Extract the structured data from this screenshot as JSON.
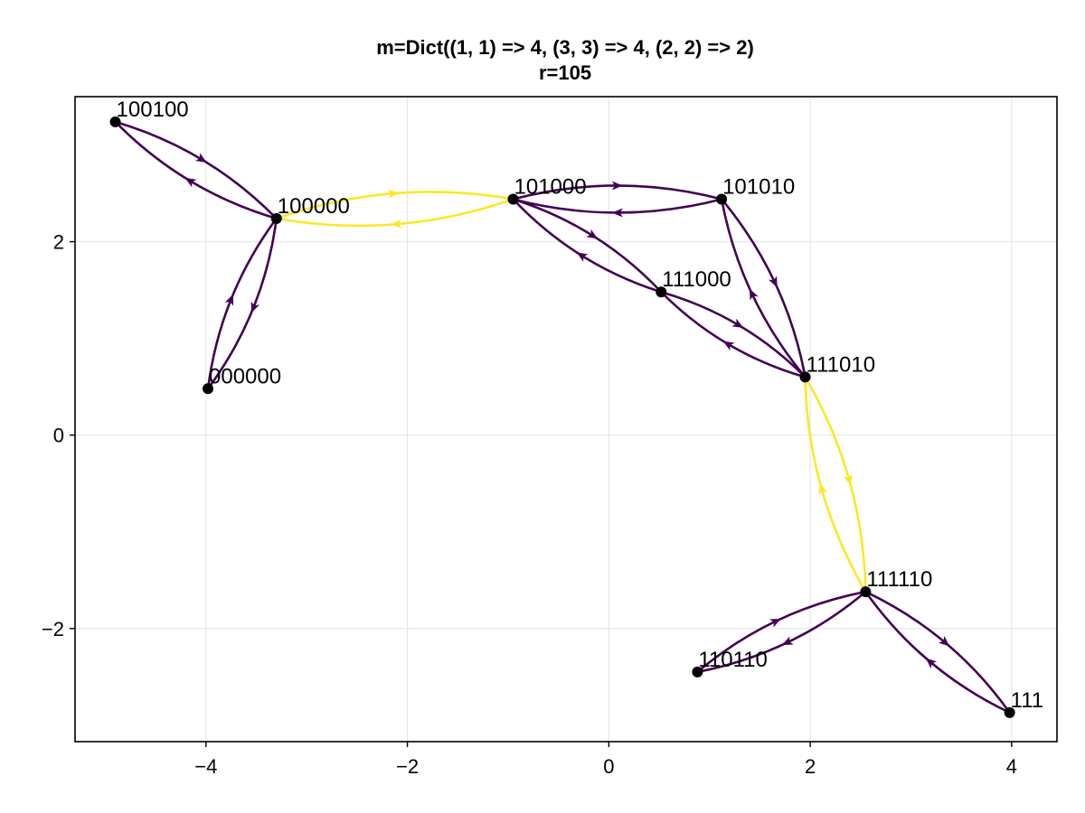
{
  "title_line1": "m=Dict((1, 1) => 4, (3, 3) => 4, (2, 2) => 2)",
  "title_line2": "r=105",
  "chart_data": {
    "type": "graph",
    "xlim": [
      -5.3,
      4.45
    ],
    "ylim": [
      -3.17,
      3.5
    ],
    "xticks": [
      -4,
      -2,
      0,
      2,
      4
    ],
    "yticks": [
      -2,
      0,
      2
    ],
    "xtick_labels": [
      "−4",
      "−2",
      "0",
      "2",
      "4"
    ],
    "ytick_labels": [
      "−2",
      "0",
      "2"
    ],
    "grid": true,
    "colors": {
      "normal": "#440154",
      "highlight": "#fde725",
      "node": "#000000"
    },
    "nodes": [
      {
        "id": "100100",
        "label": "100100",
        "x": -4.9,
        "y": 3.24
      },
      {
        "id": "100000",
        "label": "100000",
        "x": -3.3,
        "y": 2.24
      },
      {
        "id": "000000",
        "label": "000000",
        "x": -3.98,
        "y": 0.48
      },
      {
        "id": "101000",
        "label": "101000",
        "x": -0.95,
        "y": 2.44
      },
      {
        "id": "101010",
        "label": "101010",
        "x": 1.12,
        "y": 2.44
      },
      {
        "id": "111000",
        "label": "111000",
        "x": 0.52,
        "y": 1.48
      },
      {
        "id": "111010",
        "label": "111010",
        "x": 1.95,
        "y": 0.6
      },
      {
        "id": "111110",
        "label": "111110",
        "x": 2.55,
        "y": -1.62
      },
      {
        "id": "110110",
        "label": "110110",
        "x": 0.88,
        "y": -2.45
      },
      {
        "id": "111",
        "label": "111",
        "x": 3.98,
        "y": -2.87
      }
    ],
    "edges": [
      {
        "from": "100100",
        "to": "100000",
        "highlight": false
      },
      {
        "from": "100000",
        "to": "100100",
        "highlight": false
      },
      {
        "from": "100000",
        "to": "000000",
        "highlight": false
      },
      {
        "from": "000000",
        "to": "100000",
        "highlight": false
      },
      {
        "from": "100000",
        "to": "101000",
        "highlight": true
      },
      {
        "from": "101000",
        "to": "100000",
        "highlight": true
      },
      {
        "from": "101000",
        "to": "101010",
        "highlight": false
      },
      {
        "from": "101010",
        "to": "101000",
        "highlight": false
      },
      {
        "from": "101000",
        "to": "111000",
        "highlight": false
      },
      {
        "from": "111000",
        "to": "101000",
        "highlight": false
      },
      {
        "from": "101010",
        "to": "111010",
        "highlight": false
      },
      {
        "from": "111010",
        "to": "101010",
        "highlight": false
      },
      {
        "from": "111000",
        "to": "111010",
        "highlight": false
      },
      {
        "from": "111010",
        "to": "111000",
        "highlight": false
      },
      {
        "from": "111010",
        "to": "111110",
        "highlight": true
      },
      {
        "from": "111110",
        "to": "111010",
        "highlight": true
      },
      {
        "from": "111110",
        "to": "110110",
        "highlight": false
      },
      {
        "from": "110110",
        "to": "111110",
        "highlight": false
      },
      {
        "from": "111110",
        "to": "111",
        "highlight": false
      },
      {
        "from": "111",
        "to": "111110",
        "highlight": false
      }
    ]
  }
}
